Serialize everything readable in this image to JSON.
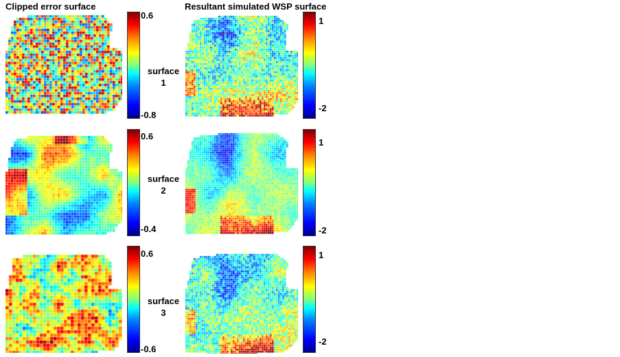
{
  "titles": {
    "left": "Clipped error surface",
    "right": "Resultant simulated WSP surface"
  },
  "rows": [
    {
      "label_word": "surface",
      "label_num": "1",
      "left_colorbar": {
        "max": "0.6",
        "min": "-0.8"
      },
      "right_colorbar": {
        "max": "1",
        "min": "-2"
      }
    },
    {
      "label_word": "surface",
      "label_num": "2",
      "left_colorbar": {
        "max": "0.6",
        "min": "-0.4"
      },
      "right_colorbar": {
        "max": "1",
        "min": "-2"
      }
    },
    {
      "label_word": "surface",
      "label_num": "3",
      "left_colorbar": {
        "max": "0.6",
        "min": "-0.6"
      },
      "right_colorbar": {
        "max": "1",
        "min": "-2"
      }
    }
  ],
  "colormap": [
    "#00008f",
    "#0000ff",
    "#0080ff",
    "#00ffff",
    "#80ff80",
    "#ffff00",
    "#ff8000",
    "#ff0000",
    "#800000"
  ]
}
